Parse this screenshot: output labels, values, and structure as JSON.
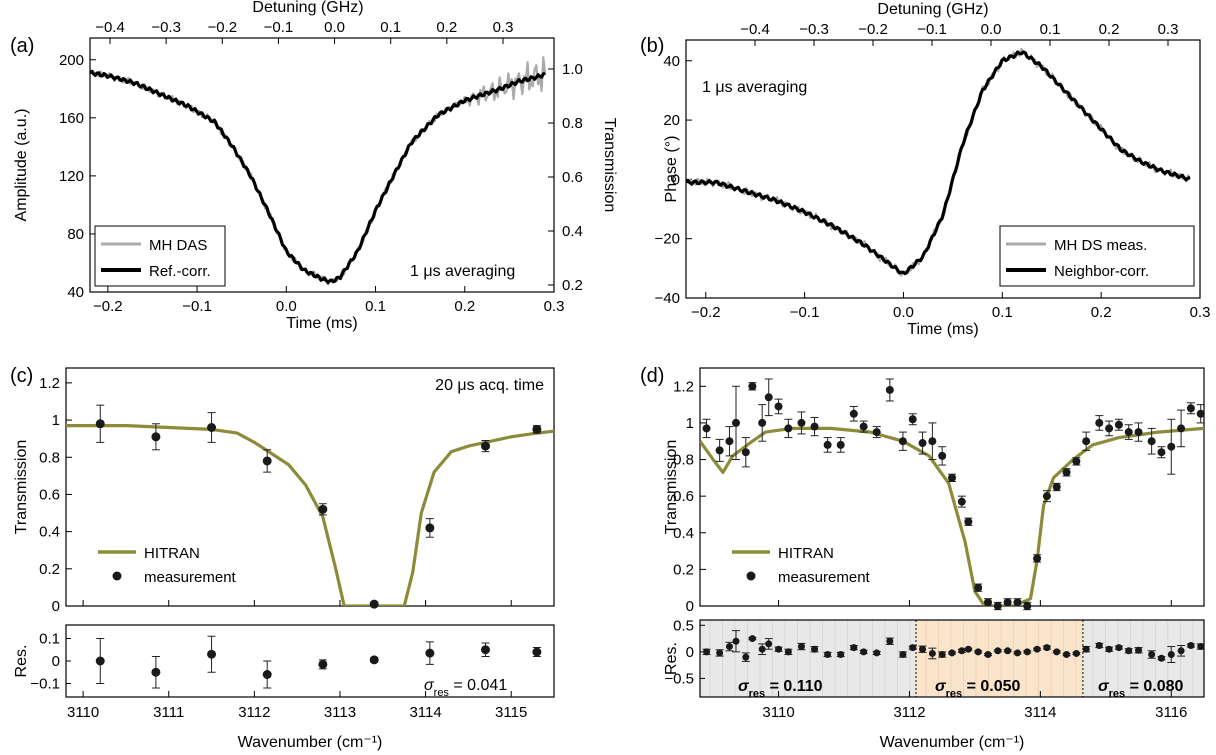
{
  "chart_data": [
    {
      "panel_label": "(a)",
      "type": "line",
      "xlabel": "Time (ms)",
      "ylabel": "Amplitude (a.u.)",
      "ylabel_right": "Transmission",
      "xlabel_top": "Detuning (GHz)",
      "xlim": [
        -0.22,
        0.3
      ],
      "ylim": [
        40,
        215
      ],
      "x_ticks": [
        "-0.2",
        "-0.1",
        "0.0",
        "0.1",
        "0.2",
        "0.3"
      ],
      "y_ticks": [
        "40",
        "80",
        "120",
        "160",
        "200"
      ],
      "right_ticks": [
        "0.2",
        "0.4",
        "0.6",
        "0.8",
        "1.0"
      ],
      "top_ticks": [
        "-0.4",
        "-0.3",
        "-0.2",
        "-0.1",
        "0.0",
        "0.1",
        "0.2",
        "0.3"
      ],
      "annotation": "1 μs averaging",
      "legend_position": "bottom-left",
      "series": [
        {
          "name": "MH DAS",
          "color": "#aaaaaa",
          "x": [
            -0.22,
            -0.2,
            -0.17,
            -0.14,
            -0.11,
            -0.08,
            -0.06,
            -0.04,
            -0.02,
            0.0,
            0.02,
            0.04,
            0.05,
            0.06,
            0.08,
            0.1,
            0.12,
            0.14,
            0.17,
            0.2,
            0.22,
            0.24,
            0.26,
            0.28,
            0.29
          ],
          "y": [
            191,
            189,
            184,
            176,
            168,
            157,
            140,
            120,
            95,
            68,
            55,
            49,
            47,
            50,
            68,
            96,
            120,
            143,
            162,
            172,
            176,
            180,
            185,
            188,
            190
          ]
        },
        {
          "name": "Ref.-corr.",
          "color": "#000000",
          "x": [
            -0.22,
            -0.2,
            -0.17,
            -0.14,
            -0.11,
            -0.08,
            -0.06,
            -0.04,
            -0.02,
            0.0,
            0.02,
            0.04,
            0.05,
            0.06,
            0.08,
            0.1,
            0.12,
            0.14,
            0.17,
            0.2,
            0.22,
            0.24,
            0.26,
            0.28,
            0.29
          ],
          "y": [
            191,
            189,
            184,
            176,
            168,
            157,
            140,
            120,
            95,
            68,
            55,
            49,
            47,
            50,
            68,
            96,
            120,
            143,
            162,
            172,
            176,
            180,
            185,
            188,
            190
          ]
        }
      ]
    },
    {
      "panel_label": "(b)",
      "type": "line",
      "xlabel": "Time (ms)",
      "ylabel": "Phase (°)",
      "xlabel_top": "Detuning (GHz)",
      "xlim": [
        -0.22,
        0.3
      ],
      "ylim": [
        -40,
        47
      ],
      "x_ticks": [
        "-0.2",
        "-0.1",
        "0.0",
        "0.1",
        "0.2",
        "0.3"
      ],
      "y_ticks": [
        "-40",
        "-20",
        "0",
        "20",
        "40"
      ],
      "top_ticks": [
        "-0.4",
        "-0.3",
        "-0.2",
        "-0.1",
        "0.0",
        "0.1",
        "0.2",
        "0.3"
      ],
      "annotation": "1 μs averaging",
      "legend_position": "bottom-right",
      "series": [
        {
          "name": "MH DS meas.",
          "color": "#aaaaaa",
          "x": [
            -0.22,
            -0.19,
            -0.16,
            -0.13,
            -0.1,
            -0.07,
            -0.04,
            -0.02,
            0.0,
            0.02,
            0.04,
            0.06,
            0.08,
            0.1,
            0.12,
            0.14,
            0.16,
            0.18,
            0.2,
            0.22,
            0.24,
            0.26,
            0.28,
            0.29
          ],
          "y": [
            -1,
            -1,
            -4,
            -7,
            -11,
            -16,
            -22,
            -27,
            -32,
            -26,
            -12,
            12,
            30,
            40,
            43,
            38,
            31,
            24,
            17,
            10,
            6,
            3,
            1,
            0
          ]
        },
        {
          "name": "Neighbor-corr.",
          "color": "#000000",
          "x": [
            -0.22,
            -0.19,
            -0.16,
            -0.13,
            -0.1,
            -0.07,
            -0.04,
            -0.02,
            0.0,
            0.02,
            0.04,
            0.06,
            0.08,
            0.1,
            0.12,
            0.14,
            0.16,
            0.18,
            0.2,
            0.22,
            0.24,
            0.26,
            0.28,
            0.29
          ],
          "y": [
            -1,
            -1,
            -4,
            -7,
            -11,
            -16,
            -22,
            -27,
            -32,
            -26,
            -12,
            12,
            30,
            40,
            43,
            38,
            31,
            24,
            17,
            10,
            6,
            3,
            1,
            0
          ]
        }
      ]
    },
    {
      "panel_label": "(c)",
      "type": "line",
      "xlabel": "Wavenumber (cm⁻¹)",
      "ylabel": "Transmission",
      "res_ylabel": "Res.",
      "xlim": [
        3109.8,
        3115.5
      ],
      "ylim": [
        0,
        1.28
      ],
      "x_ticks": [
        "3110",
        "3111",
        "3112",
        "3113",
        "3114",
        "3115"
      ],
      "y_ticks": [
        "0",
        "0.2",
        "0.4",
        "0.6",
        "0.8",
        "1",
        "1.2"
      ],
      "res_ylim": [
        -0.16,
        0.16
      ],
      "res_ticks": [
        "-0.1",
        "0",
        "0.1"
      ],
      "annotation": "20 μs acq. time",
      "sigma_label": "σ",
      "sigma_sub": "res",
      "sigma_value": "= 0.041",
      "legend_position": "bottom-left",
      "series": [
        {
          "name": "HITRAN",
          "color": "#8b8b3a",
          "x": [
            3109.8,
            3110.5,
            3111.0,
            3111.5,
            3111.8,
            3112.0,
            3112.2,
            3112.4,
            3112.6,
            3112.8,
            3112.95,
            3113.05,
            3113.2,
            3113.4,
            3113.6,
            3113.75,
            3113.85,
            3113.95,
            3114.1,
            3114.3,
            3114.5,
            3114.7,
            3115.0,
            3115.3,
            3115.5
          ],
          "y": [
            0.97,
            0.97,
            0.96,
            0.95,
            0.93,
            0.88,
            0.82,
            0.76,
            0.65,
            0.48,
            0.2,
            0.0,
            0.0,
            0.0,
            0.0,
            0.0,
            0.18,
            0.5,
            0.72,
            0.83,
            0.86,
            0.88,
            0.91,
            0.93,
            0.94
          ]
        },
        {
          "name": "measurement",
          "color": "#111111",
          "x": [
            3110.2,
            3110.85,
            3111.5,
            3112.15,
            3112.8,
            3113.4,
            3114.05,
            3114.7,
            3115.3
          ],
          "y": [
            0.98,
            0.91,
            0.96,
            0.78,
            0.52,
            0.01,
            0.42,
            0.86,
            0.95
          ],
          "err": [
            0.1,
            0.07,
            0.08,
            0.06,
            0.03,
            0.01,
            0.05,
            0.03,
            0.02
          ],
          "res": [
            0.0,
            -0.05,
            0.03,
            -0.06,
            -0.015,
            0.005,
            0.035,
            0.05,
            0.04
          ],
          "res_err": [
            0.1,
            0.07,
            0.08,
            0.06,
            0.02,
            0.01,
            0.05,
            0.03,
            0.02
          ]
        }
      ]
    },
    {
      "panel_label": "(d)",
      "type": "line",
      "xlabel": "Wavenumber (cm⁻¹)",
      "ylabel": "Transmission",
      "res_ylabel": "Res.",
      "xlim": [
        3108.8,
        3116.5
      ],
      "ylim": [
        0,
        1.3
      ],
      "x_ticks": [
        "3110",
        "3112",
        "3114",
        "3116"
      ],
      "y_ticks": [
        "0",
        "0.2",
        "0.4",
        "0.6",
        "0.8",
        "1",
        "1.2"
      ],
      "res_ylim": [
        -0.85,
        0.6
      ],
      "res_ticks": [
        "-0.5",
        "0",
        "0.5"
      ],
      "legend_position": "bottom-left",
      "regions": [
        {
          "from": 3108.8,
          "to": 3112.1,
          "color": "#e8e8e8",
          "sigma_label": "σ",
          "sigma_sub": "res",
          "sigma_value": "= 0.110"
        },
        {
          "from": 3112.1,
          "to": 3114.65,
          "color": "#fbe4cc",
          "sigma_label": "σ",
          "sigma_sub": "res",
          "sigma_value": "= 0.050"
        },
        {
          "from": 3114.65,
          "to": 3116.5,
          "color": "#e8e8e8",
          "sigma_label": "σ",
          "sigma_sub": "res",
          "sigma_value": "= 0.080"
        }
      ],
      "series": [
        {
          "name": "HITRAN",
          "color": "#8b8b3a",
          "x": [
            3108.8,
            3109.0,
            3109.15,
            3109.3,
            3109.45,
            3109.6,
            3109.8,
            3110.2,
            3110.8,
            3111.4,
            3111.9,
            3112.3,
            3112.6,
            3112.85,
            3113.0,
            3113.15,
            3113.35,
            3113.6,
            3113.85,
            3113.95,
            3114.05,
            3114.2,
            3114.5,
            3114.8,
            3115.2,
            3115.8,
            3116.5
          ],
          "y": [
            0.9,
            0.8,
            0.73,
            0.82,
            0.86,
            0.9,
            0.95,
            0.97,
            0.97,
            0.95,
            0.9,
            0.82,
            0.67,
            0.35,
            0.08,
            0.0,
            0.0,
            0.0,
            0.04,
            0.25,
            0.55,
            0.7,
            0.8,
            0.88,
            0.92,
            0.95,
            0.97
          ]
        },
        {
          "name": "measurement",
          "color": "#111111",
          "x": [
            3108.9,
            3109.1,
            3109.25,
            3109.35,
            3109.5,
            3109.6,
            3109.75,
            3109.85,
            3110.0,
            3110.15,
            3110.35,
            3110.55,
            3110.75,
            3110.95,
            3111.15,
            3111.3,
            3111.5,
            3111.7,
            3111.9,
            3112.05,
            3112.2,
            3112.35,
            3112.5,
            3112.65,
            3112.8,
            3112.9,
            3113.05,
            3113.2,
            3113.35,
            3113.5,
            3113.65,
            3113.8,
            3113.95,
            3114.1,
            3114.25,
            3114.4,
            3114.55,
            3114.7,
            3114.9,
            3115.05,
            3115.2,
            3115.35,
            3115.5,
            3115.7,
            3115.85,
            3116.0,
            3116.15,
            3116.3,
            3116.45
          ],
          "y": [
            0.97,
            0.85,
            0.9,
            1.0,
            0.84,
            1.2,
            1.0,
            1.14,
            1.09,
            0.97,
            1.0,
            0.98,
            0.88,
            0.88,
            1.05,
            0.98,
            0.95,
            1.18,
            0.9,
            1.02,
            0.89,
            0.9,
            0.82,
            0.7,
            0.57,
            0.46,
            0.1,
            0.02,
            0.0,
            0.02,
            0.02,
            0.0,
            0.26,
            0.6,
            0.65,
            0.73,
            0.79,
            0.9,
            1.0,
            0.97,
            0.99,
            0.95,
            0.95,
            0.9,
            0.84,
            0.87,
            0.97,
            1.08,
            1.05
          ],
          "err": [
            0.05,
            0.06,
            0.08,
            0.2,
            0.08,
            0.02,
            0.1,
            0.1,
            0.04,
            0.05,
            0.06,
            0.05,
            0.04,
            0.04,
            0.04,
            0.03,
            0.03,
            0.06,
            0.05,
            0.03,
            0.06,
            0.1,
            0.05,
            0.02,
            0.03,
            0.02,
            0.02,
            0.02,
            0.02,
            0.02,
            0.02,
            0.02,
            0.02,
            0.03,
            0.02,
            0.02,
            0.02,
            0.05,
            0.04,
            0.04,
            0.03,
            0.04,
            0.05,
            0.07,
            0.03,
            0.15,
            0.1,
            0.03,
            0.05
          ],
          "res": [
            0.0,
            -0.02,
            0.1,
            0.2,
            -0.1,
            0.25,
            0.05,
            0.15,
            0.05,
            0.0,
            0.1,
            0.05,
            -0.05,
            -0.05,
            0.08,
            0.0,
            -0.02,
            0.2,
            -0.05,
            0.08,
            0.05,
            -0.03,
            -0.05,
            -0.02,
            0.02,
            0.05,
            0.0,
            -0.05,
            0.02,
            0.02,
            -0.02,
            0.0,
            0.05,
            0.08,
            0.0,
            -0.05,
            -0.03,
            0.05,
            0.12,
            0.05,
            0.08,
            0.02,
            0.03,
            -0.05,
            -0.12,
            -0.05,
            0.02,
            0.12,
            0.1
          ],
          "res_err": [
            0.05,
            0.06,
            0.08,
            0.2,
            0.08,
            0.02,
            0.1,
            0.1,
            0.04,
            0.05,
            0.06,
            0.05,
            0.04,
            0.04,
            0.04,
            0.03,
            0.03,
            0.06,
            0.05,
            0.03,
            0.06,
            0.1,
            0.05,
            0.02,
            0.03,
            0.02,
            0.02,
            0.02,
            0.02,
            0.02,
            0.02,
            0.02,
            0.02,
            0.03,
            0.02,
            0.02,
            0.02,
            0.05,
            0.04,
            0.04,
            0.03,
            0.04,
            0.05,
            0.07,
            0.03,
            0.15,
            0.1,
            0.03,
            0.05
          ]
        }
      ]
    }
  ]
}
